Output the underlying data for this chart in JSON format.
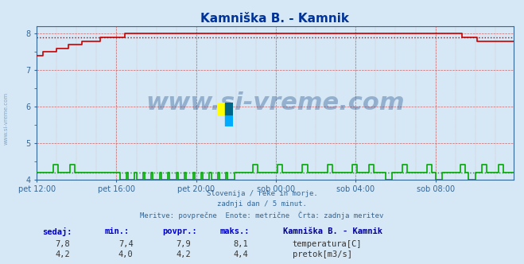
{
  "title": "Kamniška B. - Kamnik",
  "bg_color": "#d6e8f5",
  "plot_bg_color": "#d6e8f5",
  "fig_bg_color": "#d6e8f5",
  "grid_color_major": "#b0c4d8",
  "grid_color_minor": "#c8dcea",
  "temp_color": "#cc0000",
  "flow_color": "#00aa00",
  "avg_temp_color": "#cc0000",
  "avg_flow_color": "#00aa00",
  "title_color": "#003399",
  "label_color": "#336699",
  "axis_color": "#336699",
  "watermark": "www.si-vreme.com",
  "watermark_color": "#1a4a8a",
  "subtitle_lines": [
    "Slovenija / reke in morje.",
    "zadnji dan / 5 minut.",
    "Meritve: povprečne  Enote: metrične  Črta: zadnja meritev"
  ],
  "xlabels": [
    "pet 12:00",
    "pet 16:00",
    "pet 20:00",
    "sob 00:00",
    "sob 04:00",
    "sob 08:00"
  ],
  "ylim": [
    4.0,
    8.2
  ],
  "yticks": [
    4,
    5,
    6,
    7,
    8
  ],
  "legend_title": "Kamniška B. - Kamnik",
  "legend_items": [
    {
      "label": "temperatura[C]",
      "color": "#cc0000"
    },
    {
      "label": "pretok[m3/s]",
      "color": "#00aa00"
    }
  ],
  "table_headers": [
    "sedaj:",
    "min.:",
    "povpr.:",
    "maks.:"
  ],
  "table_rows": [
    [
      "7,8",
      "7,4",
      "7,9",
      "8,1"
    ],
    [
      "4,2",
      "4,0",
      "4,2",
      "4,4"
    ]
  ],
  "avg_temp": 7.9,
  "avg_flow": 4.2,
  "n_points": 288
}
